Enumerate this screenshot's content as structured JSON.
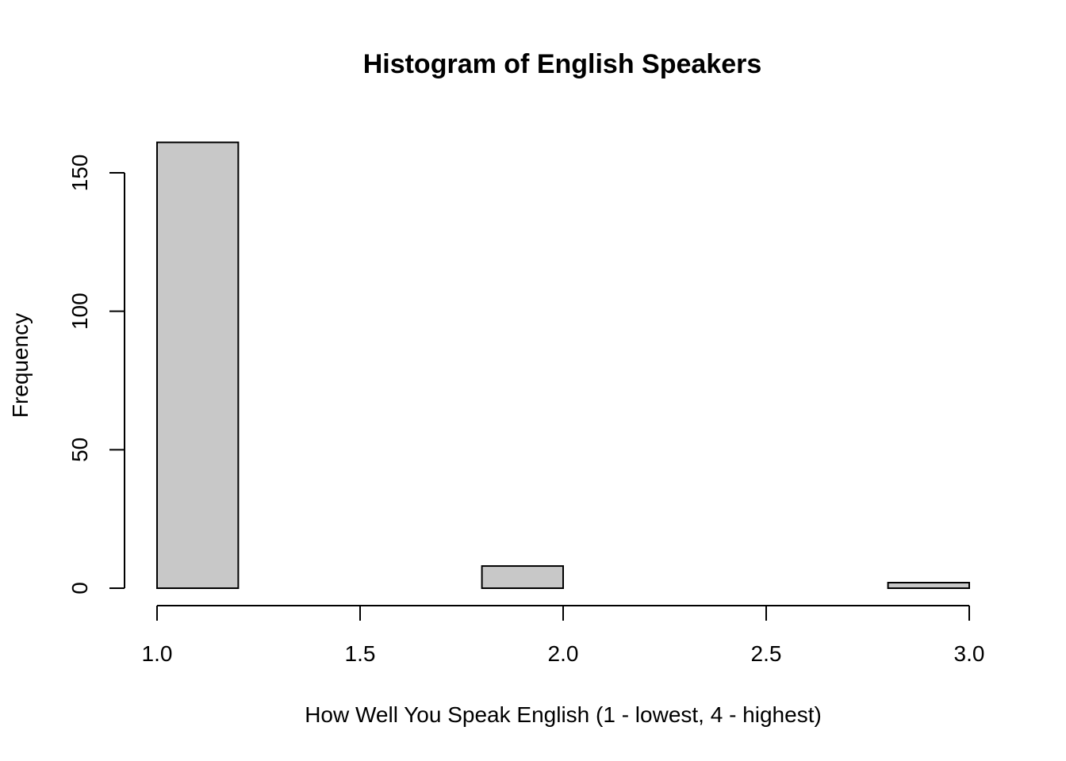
{
  "chart_data": {
    "type": "bar",
    "title": "Histogram of English Speakers",
    "xlabel": "How Well You Speak English (1 - lowest, 4 - highest)",
    "ylabel": "Frequency",
    "bins": [
      {
        "start": 1.0,
        "end": 1.2,
        "count": 161
      },
      {
        "start": 1.2,
        "end": 1.4,
        "count": 0
      },
      {
        "start": 1.4,
        "end": 1.6,
        "count": 0
      },
      {
        "start": 1.6,
        "end": 1.8,
        "count": 0
      },
      {
        "start": 1.8,
        "end": 2.0,
        "count": 8
      },
      {
        "start": 2.0,
        "end": 2.2,
        "count": 0
      },
      {
        "start": 2.2,
        "end": 2.4,
        "count": 0
      },
      {
        "start": 2.4,
        "end": 2.6,
        "count": 0
      },
      {
        "start": 2.6,
        "end": 2.8,
        "count": 0
      },
      {
        "start": 2.8,
        "end": 3.0,
        "count": 2
      }
    ],
    "xticks": [
      1.0,
      1.5,
      2.0,
      2.5,
      3.0
    ],
    "xtick_labels": [
      "1.0",
      "1.5",
      "2.0",
      "2.5",
      "3.0"
    ],
    "yticks": [
      0,
      50,
      100,
      150
    ],
    "ytick_labels": [
      "0",
      "50",
      "100",
      "150"
    ],
    "xlim": [
      1.0,
      3.0
    ],
    "ylim": [
      0,
      161
    ],
    "grid": false,
    "legend": "none",
    "colors": {
      "bar_fill": "#c8c8c8",
      "bar_stroke": "#000000"
    }
  }
}
